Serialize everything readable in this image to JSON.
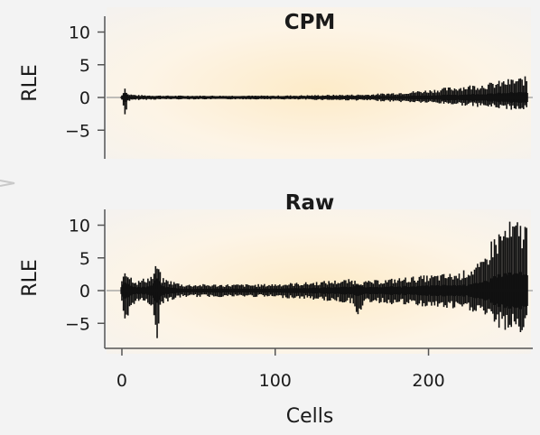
{
  "chart_data": [
    {
      "type": "box",
      "title": "CPM",
      "xlabel": "",
      "ylabel": "RLE",
      "ylim": [
        -9,
        12
      ],
      "xlim": [
        -10,
        268
      ],
      "yticks": [
        10,
        5,
        0,
        -5
      ],
      "ytick_labels": [
        "10",
        "5",
        "0",
        "−5"
      ],
      "n_cells": 265,
      "reference_line_y": 0,
      "whisker_envelope": {
        "x": [
          0,
          2,
          4,
          10,
          30,
          60,
          100,
          130,
          160,
          180,
          200,
          220,
          240,
          255,
          265
        ],
        "upper": [
          0.4,
          1.8,
          0.6,
          0.4,
          0.3,
          0.3,
          0.3,
          0.4,
          0.5,
          0.8,
          1.2,
          1.8,
          2.3,
          3.0,
          3.3
        ],
        "lower": [
          -0.4,
          -3.3,
          -0.6,
          -0.4,
          -0.3,
          -0.3,
          -0.3,
          -0.4,
          -0.5,
          -0.7,
          -0.9,
          -1.2,
          -1.6,
          -1.9,
          -2.0
        ]
      }
    },
    {
      "type": "box",
      "title": "Raw",
      "xlabel": "Cells",
      "ylabel": "RLE",
      "ylim": [
        -9,
        12
      ],
      "xlim": [
        -10,
        268
      ],
      "yticks": [
        10,
        5,
        0,
        -5
      ],
      "ytick_labels": [
        "10",
        "5",
        "0",
        "−5"
      ],
      "xticks": [
        0,
        100,
        200
      ],
      "xtick_labels": [
        "0",
        "100",
        "200"
      ],
      "n_cells": 265,
      "reference_line_y": 0,
      "whisker_envelope": {
        "x": [
          0,
          2,
          5,
          10,
          20,
          23,
          26,
          40,
          60,
          90,
          120,
          150,
          155,
          160,
          190,
          220,
          235,
          242,
          250,
          258,
          265
        ],
        "upper": [
          2.0,
          4.0,
          2.5,
          1.5,
          2.5,
          4.6,
          2.0,
          1.0,
          1.0,
          1.0,
          1.3,
          1.8,
          1.5,
          1.5,
          2.2,
          2.8,
          4.5,
          8.5,
          10.5,
          11.0,
          11.0
        ],
        "lower": [
          -2.5,
          -6.8,
          -4.0,
          -1.5,
          -2.5,
          -7.7,
          -2.0,
          -1.0,
          -1.0,
          -1.0,
          -1.3,
          -2.0,
          -4.2,
          -1.8,
          -2.4,
          -3.0,
          -3.5,
          -5.5,
          -6.2,
          -6.5,
          -6.8
        ]
      }
    }
  ]
}
